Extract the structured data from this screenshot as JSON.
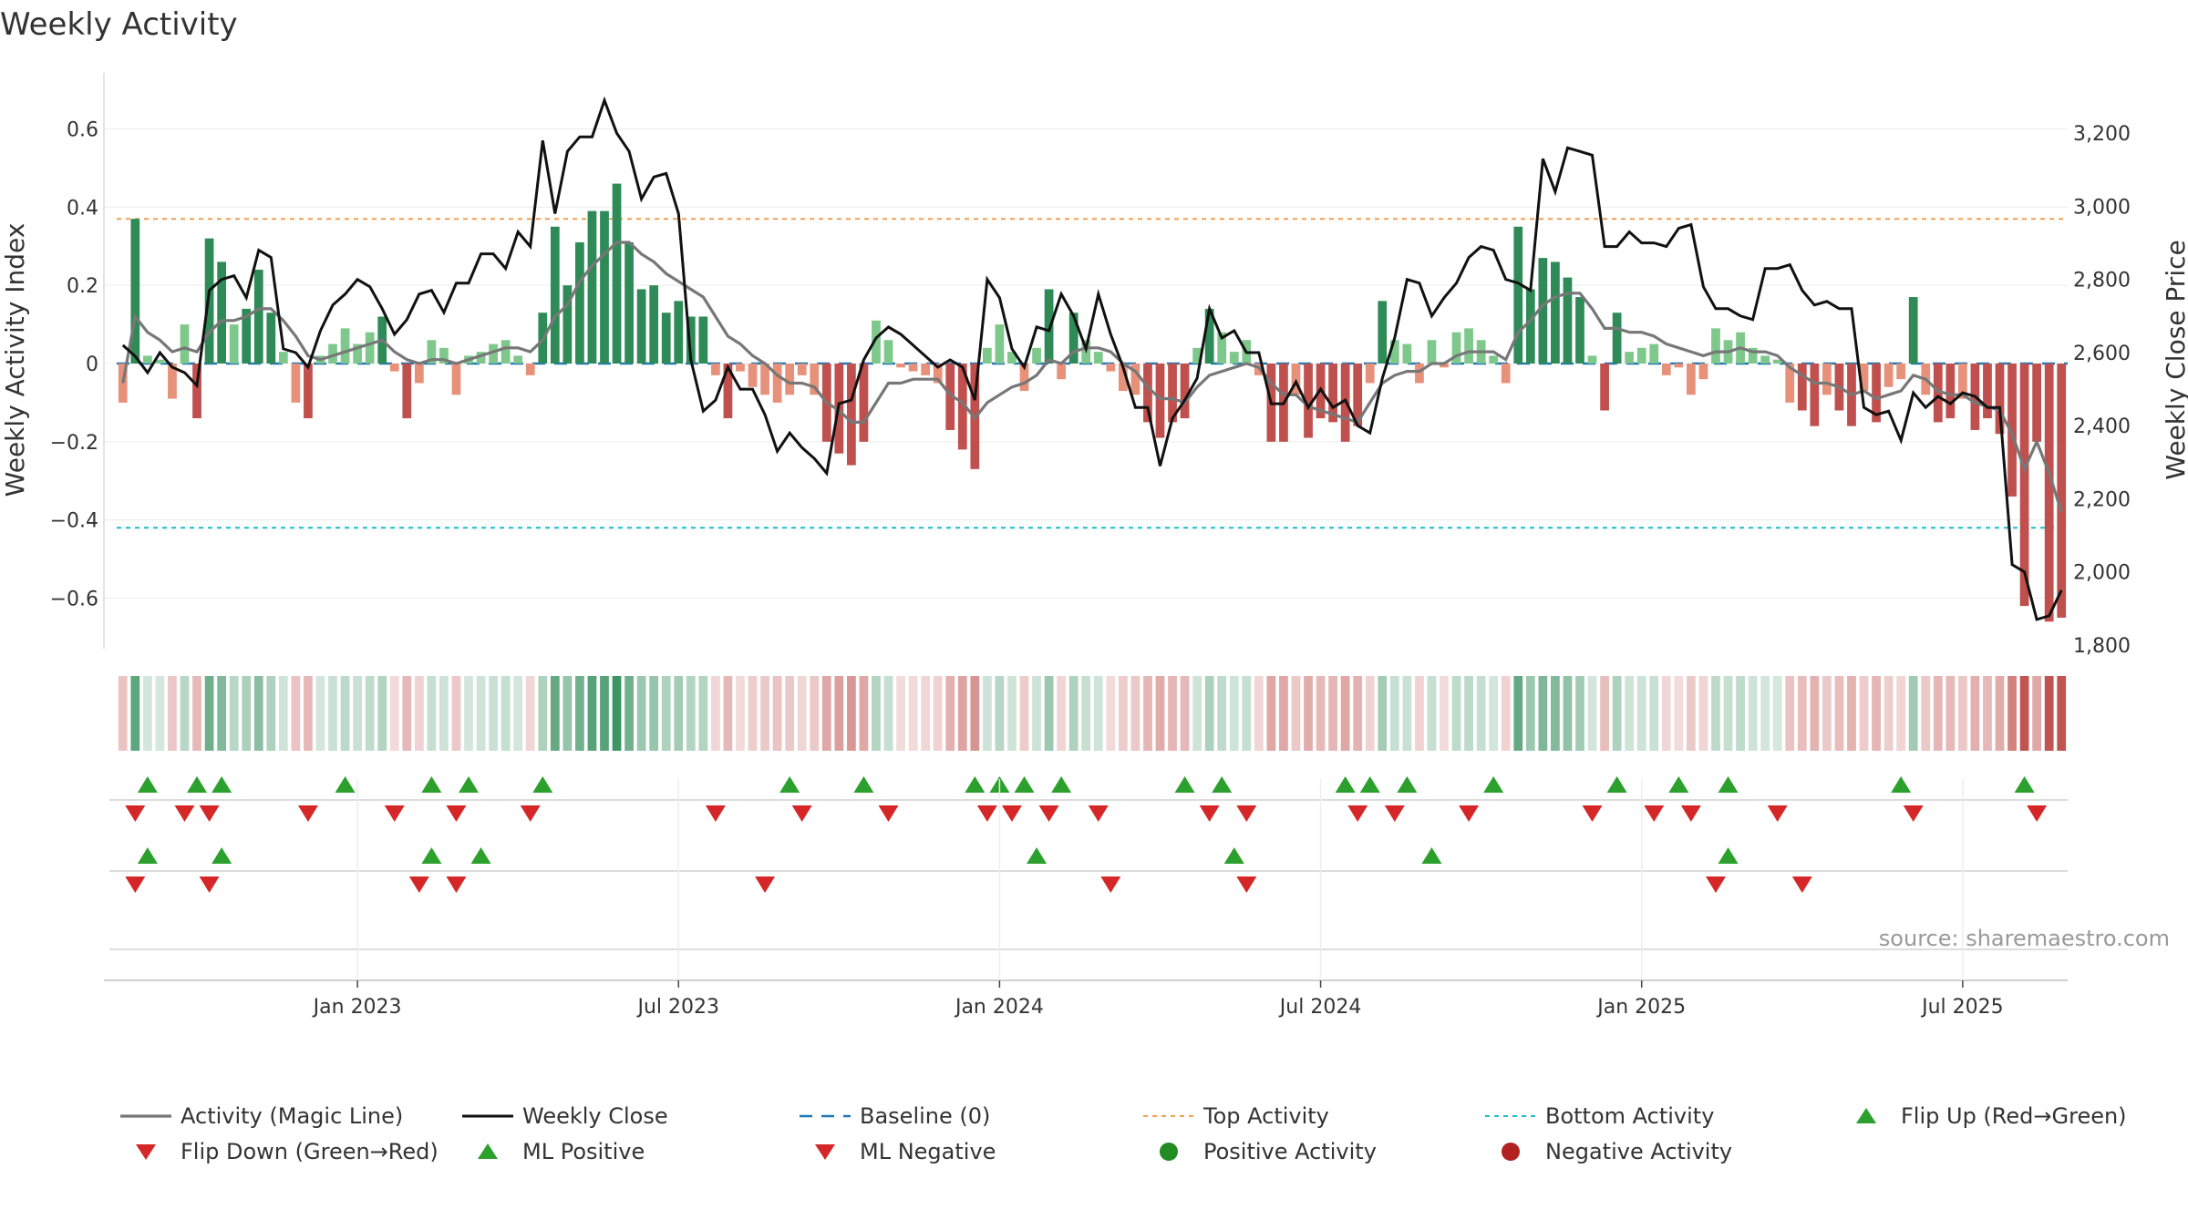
{
  "chart_data": {
    "type": "bar",
    "title": "Weekly Activity",
    "ylabel": "Weekly Activity Index",
    "y2label": "Weekly Close Price",
    "source": "source: sharemaestro.com",
    "ylim": [
      -0.72,
      0.72
    ],
    "y2lim": [
      1800,
      3340
    ],
    "yticks": [
      -0.6,
      -0.4,
      -0.2,
      0,
      0.2,
      0.4,
      0.6
    ],
    "ytick_labels": [
      "−0.6",
      "−0.4",
      "−0.2",
      "0",
      "0.2",
      "0.4",
      "0.6"
    ],
    "y2ticks": [
      1800,
      2000,
      2200,
      2400,
      2600,
      2800,
      3000,
      3200
    ],
    "y2tick_labels": [
      "1,800",
      "2,000",
      "2,200",
      "2,400",
      "2,600",
      "2,800",
      "3,000",
      "3,200"
    ],
    "top_activity": 0.37,
    "bottom_activity": -0.42,
    "baseline": 0,
    "date_ticks": [
      {
        "week": 19,
        "label": "Jan 2023"
      },
      {
        "week": 45,
        "label": "Jul 2023"
      },
      {
        "week": 71,
        "label": "Jan 2024"
      },
      {
        "week": 97,
        "label": "Jul 2024"
      },
      {
        "week": 123,
        "label": "Jan 2025"
      },
      {
        "week": 149,
        "label": "Jul 2025"
      }
    ],
    "colors": {
      "pos_strong": "#2e8b57",
      "pos_weak": "#7fc88c",
      "neg_strong": "#c0504d",
      "neg_weak": "#e8917a",
      "magic_line": "#777777",
      "close_line": "#111111",
      "baseline": "#1f77b4",
      "top_activity": "#f0a050",
      "bottom_activity": "#17becf",
      "flip_up": "#2ca02c",
      "flip_down": "#d62728",
      "pos_dot": "#228b22",
      "neg_dot": "#b22222"
    },
    "series": [
      {
        "name": "Weekly Activity",
        "values": [
          -0.1,
          0.37,
          0.02,
          0.01,
          -0.09,
          0.1,
          -0.14,
          0.32,
          0.26,
          0.1,
          0.14,
          0.24,
          0.13,
          0.03,
          -0.1,
          -0.14,
          0.02,
          0.05,
          0.09,
          0.05,
          0.08,
          0.12,
          -0.02,
          -0.14,
          -0.05,
          0.06,
          0.04,
          -0.08,
          0.02,
          0.03,
          0.05,
          0.06,
          0.02,
          -0.03,
          0.13,
          0.35,
          0.2,
          0.31,
          0.39,
          0.39,
          0.46,
          0.31,
          0.19,
          0.2,
          0.13,
          0.16,
          0.12,
          0.12,
          -0.03,
          -0.14,
          -0.02,
          -0.06,
          -0.08,
          -0.1,
          -0.08,
          -0.03,
          -0.08,
          -0.2,
          -0.23,
          -0.26,
          -0.2,
          0.11,
          0.06,
          -0.01,
          -0.02,
          -0.03,
          -0.05,
          -0.17,
          -0.22,
          -0.27,
          0.04,
          0.1,
          0.03,
          -0.07,
          0.04,
          0.19,
          -0.04,
          0.13,
          0.06,
          0.03,
          -0.02,
          -0.07,
          -0.08,
          -0.15,
          -0.19,
          -0.15,
          -0.14,
          0.04,
          0.14,
          0.08,
          0.03,
          0.06,
          -0.03,
          -0.2,
          -0.2,
          -0.08,
          -0.19,
          -0.14,
          -0.15,
          -0.2,
          -0.16,
          -0.05,
          0.16,
          0.06,
          0.05,
          -0.05,
          0.06,
          -0.01,
          0.08,
          0.09,
          0.06,
          0.02,
          -0.05,
          0.35,
          0.19,
          0.27,
          0.26,
          0.22,
          0.17,
          0.02,
          -0.12,
          0.13,
          0.03,
          0.04,
          0.05,
          -0.03,
          -0.01,
          -0.08,
          -0.04,
          0.09,
          0.06,
          0.08,
          0.04,
          0.02,
          0.01,
          -0.1,
          -0.12,
          -0.16,
          -0.08,
          -0.12,
          -0.16,
          -0.07,
          -0.15,
          -0.06,
          -0.04,
          0.17,
          -0.08,
          -0.15,
          -0.14,
          -0.09,
          -0.17,
          -0.14,
          -0.18,
          -0.34,
          -0.62,
          -0.2,
          -0.66,
          -0.65
        ]
      },
      {
        "name": "Activity (Magic Line)",
        "values": [
          -0.05,
          0.12,
          0.08,
          0.06,
          0.03,
          0.04,
          0.03,
          0.08,
          0.11,
          0.11,
          0.12,
          0.14,
          0.14,
          0.11,
          0.07,
          0.02,
          0.01,
          0.02,
          0.03,
          0.04,
          0.05,
          0.06,
          0.03,
          0.01,
          0,
          0.01,
          0.01,
          0,
          0.01,
          0.02,
          0.03,
          0.04,
          0.04,
          0.03,
          0.06,
          0.12,
          0.15,
          0.21,
          0.25,
          0.28,
          0.31,
          0.31,
          0.28,
          0.26,
          0.23,
          0.21,
          0.19,
          0.17,
          0.12,
          0.07,
          0.05,
          0.02,
          0,
          -0.03,
          -0.05,
          -0.05,
          -0.06,
          -0.1,
          -0.12,
          -0.15,
          -0.15,
          -0.1,
          -0.05,
          -0.05,
          -0.04,
          -0.04,
          -0.04,
          -0.08,
          -0.1,
          -0.14,
          -0.1,
          -0.08,
          -0.06,
          -0.05,
          -0.03,
          0.01,
          0,
          0.03,
          0.04,
          0.04,
          0.03,
          0,
          -0.02,
          -0.06,
          -0.09,
          -0.09,
          -0.1,
          -0.06,
          -0.03,
          -0.02,
          -0.01,
          0,
          -0.01,
          -0.05,
          -0.08,
          -0.08,
          -0.11,
          -0.12,
          -0.13,
          -0.14,
          -0.15,
          -0.1,
          -0.05,
          -0.03,
          -0.02,
          -0.02,
          0,
          0,
          0.02,
          0.03,
          0.03,
          0.03,
          0.01,
          0.08,
          0.11,
          0.15,
          0.17,
          0.18,
          0.18,
          0.14,
          0.09,
          0.09,
          0.08,
          0.08,
          0.07,
          0.05,
          0.04,
          0.03,
          0.02,
          0.03,
          0.03,
          0.04,
          0.03,
          0.03,
          0.02,
          -0.01,
          -0.03,
          -0.05,
          -0.05,
          -0.06,
          -0.08,
          -0.07,
          -0.09,
          -0.08,
          -0.07,
          -0.03,
          -0.04,
          -0.07,
          -0.08,
          -0.08,
          -0.1,
          -0.11,
          -0.12,
          -0.18,
          -0.27,
          -0.2,
          -0.28,
          -0.38
        ]
      },
      {
        "name": "Weekly Close",
        "values": [
          2620,
          2590,
          2545,
          2600,
          2560,
          2545,
          2510,
          2770,
          2800,
          2810,
          2750,
          2880,
          2860,
          2610,
          2600,
          2560,
          2660,
          2730,
          2760,
          2800,
          2780,
          2720,
          2650,
          2690,
          2760,
          2770,
          2710,
          2790,
          2790,
          2870,
          2870,
          2830,
          2930,
          2890,
          3180,
          2980,
          3150,
          3190,
          3190,
          3290,
          3200,
          3150,
          3020,
          3080,
          3090,
          2980,
          2580,
          2440,
          2470,
          2560,
          2500,
          2500,
          2430,
          2330,
          2380,
          2340,
          2310,
          2270,
          2460,
          2470,
          2580,
          2640,
          2670,
          2650,
          2620,
          2590,
          2560,
          2580,
          2560,
          2470,
          2800,
          2750,
          2610,
          2560,
          2670,
          2660,
          2760,
          2700,
          2610,
          2760,
          2650,
          2560,
          2450,
          2450,
          2290,
          2420,
          2470,
          2530,
          2720,
          2640,
          2660,
          2600,
          2600,
          2460,
          2460,
          2520,
          2450,
          2500,
          2450,
          2470,
          2400,
          2380,
          2530,
          2640,
          2800,
          2790,
          2700,
          2750,
          2790,
          2860,
          2890,
          2880,
          2800,
          2790,
          2770,
          3130,
          3040,
          3160,
          3150,
          3140,
          2890,
          2890,
          2930,
          2900,
          2900,
          2890,
          2940,
          2950,
          2780,
          2720,
          2720,
          2700,
          2690,
          2830,
          2830,
          2840,
          2770,
          2730,
          2740,
          2720,
          2720,
          2450,
          2430,
          2440,
          2360,
          2490,
          2450,
          2480,
          2460,
          2490,
          2480,
          2450,
          2450,
          2020,
          2000,
          1870,
          1880,
          1950
        ]
      },
      {
        "name": "Top Activity",
        "value": 0.37
      },
      {
        "name": "Bottom Activity",
        "value": -0.42
      }
    ],
    "flip_up_weeks": [
      2,
      6,
      8,
      18,
      25,
      28,
      34,
      54,
      60,
      69,
      71,
      73,
      76,
      86,
      89,
      99,
      101,
      104,
      111,
      121,
      126,
      130,
      144,
      154
    ],
    "flip_down_weeks": [
      1,
      5,
      7,
      15,
      22,
      27,
      33,
      48,
      55,
      62,
      70,
      72,
      75,
      79,
      88,
      91,
      100,
      103,
      109,
      119,
      124,
      127,
      134,
      145,
      155
    ],
    "ml_positive_weeks": [
      2,
      8,
      25,
      29,
      74,
      90,
      106,
      130
    ],
    "ml_negative_weeks": [
      1,
      7,
      24,
      27,
      52,
      80,
      91,
      129,
      136
    ],
    "legend": [
      {
        "key": "magic",
        "label": "Activity (Magic Line)"
      },
      {
        "key": "close",
        "label": "Weekly Close"
      },
      {
        "key": "baseline",
        "label": "Baseline (0)"
      },
      {
        "key": "top",
        "label": "Top Activity"
      },
      {
        "key": "bottom",
        "label": "Bottom Activity"
      },
      {
        "key": "flipup",
        "label": "Flip Up (Red→Green)"
      },
      {
        "key": "flipdown",
        "label": "Flip Down (Green→Red)"
      },
      {
        "key": "mlpos",
        "label": "ML Positive"
      },
      {
        "key": "mlneg",
        "label": "ML Negative"
      },
      {
        "key": "posdot",
        "label": "Positive Activity"
      },
      {
        "key": "negdot",
        "label": "Negative Activity"
      }
    ]
  }
}
